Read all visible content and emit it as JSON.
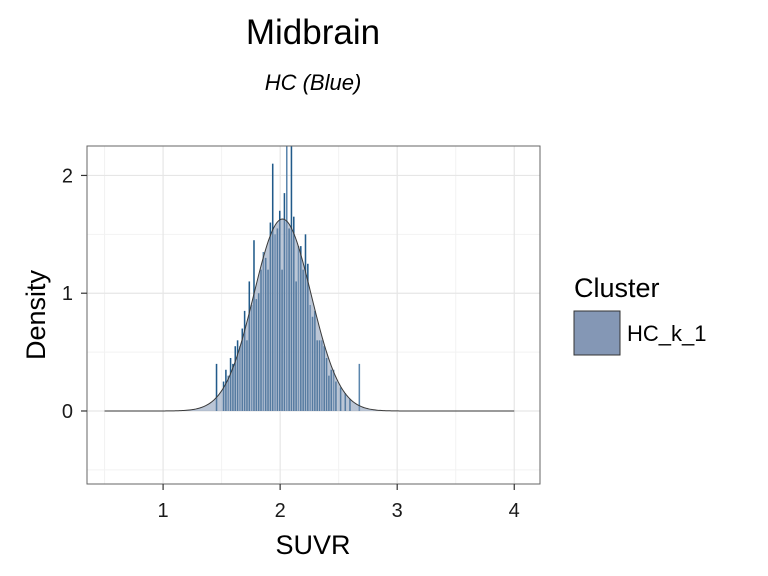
{
  "chart_data": {
    "type": "bar",
    "title": "Midbrain",
    "subtitle": "HC (Blue)",
    "xlabel": "SUVR",
    "ylabel": "Density",
    "xlim": [
      0.35,
      4.22
    ],
    "ylim": [
      -0.62,
      2.25
    ],
    "x_ticks": [
      1,
      2,
      3,
      4
    ],
    "y_ticks": [
      0,
      1,
      2
    ],
    "grid": true,
    "legend": {
      "title": "Cluster",
      "position": "right",
      "items": [
        {
          "name": "HC_k_1",
          "color": "#8497b5"
        }
      ]
    },
    "colors": {
      "histogram": "#215a8a",
      "histogram_light": "#5b86ad",
      "density_fill": "#8497b5",
      "density_line": "#3a3a3a",
      "panel_border": "#666666",
      "grid_major": "#e6e6e6",
      "grid_minor": "#f2f2f2"
    },
    "histogram": {
      "bin_width": 0.02,
      "bins": [
        {
          "x": 1.46,
          "y": 0.4
        },
        {
          "x": 1.52,
          "y": 0.25
        },
        {
          "x": 1.54,
          "y": 0.35
        },
        {
          "x": 1.56,
          "y": 0.3
        },
        {
          "x": 1.58,
          "y": 0.45
        },
        {
          "x": 1.6,
          "y": 0.4
        },
        {
          "x": 1.62,
          "y": 0.55
        },
        {
          "x": 1.64,
          "y": 0.6
        },
        {
          "x": 1.66,
          "y": 0.55
        },
        {
          "x": 1.68,
          "y": 0.7
        },
        {
          "x": 1.7,
          "y": 0.85
        },
        {
          "x": 1.72,
          "y": 0.6
        },
        {
          "x": 1.74,
          "y": 1.1
        },
        {
          "x": 1.76,
          "y": 0.9
        },
        {
          "x": 1.78,
          "y": 1.45
        },
        {
          "x": 1.8,
          "y": 0.95
        },
        {
          "x": 1.82,
          "y": 1.0
        },
        {
          "x": 1.84,
          "y": 1.2
        },
        {
          "x": 1.86,
          "y": 1.35
        },
        {
          "x": 1.88,
          "y": 1.3
        },
        {
          "x": 1.9,
          "y": 1.2
        },
        {
          "x": 1.92,
          "y": 1.6
        },
        {
          "x": 1.94,
          "y": 2.1
        },
        {
          "x": 1.96,
          "y": 1.5
        },
        {
          "x": 1.98,
          "y": 1.55
        },
        {
          "x": 2.0,
          "y": 1.7
        },
        {
          "x": 2.02,
          "y": 1.2
        },
        {
          "x": 2.04,
          "y": 1.85
        },
        {
          "x": 2.06,
          "y": 2.25
        },
        {
          "x": 2.08,
          "y": 1.55
        },
        {
          "x": 2.1,
          "y": 2.25
        },
        {
          "x": 2.12,
          "y": 1.65
        },
        {
          "x": 2.14,
          "y": 1.1
        },
        {
          "x": 2.16,
          "y": 1.4
        },
        {
          "x": 2.18,
          "y": 1.4
        },
        {
          "x": 2.2,
          "y": 1.2
        },
        {
          "x": 2.22,
          "y": 1.5
        },
        {
          "x": 2.24,
          "y": 1.25
        },
        {
          "x": 2.26,
          "y": 0.9
        },
        {
          "x": 2.28,
          "y": 0.8
        },
        {
          "x": 2.3,
          "y": 0.85
        },
        {
          "x": 2.32,
          "y": 0.6
        },
        {
          "x": 2.34,
          "y": 0.6
        },
        {
          "x": 2.36,
          "y": 0.6
        },
        {
          "x": 2.38,
          "y": 0.55
        },
        {
          "x": 2.4,
          "y": 0.45
        },
        {
          "x": 2.42,
          "y": 0.3
        },
        {
          "x": 2.44,
          "y": 0.35
        },
        {
          "x": 2.46,
          "y": 0.35
        },
        {
          "x": 2.48,
          "y": 0.25
        },
        {
          "x": 2.52,
          "y": 0.2
        },
        {
          "x": 2.56,
          "y": 0.15
        },
        {
          "x": 2.6,
          "y": 0.1
        },
        {
          "x": 2.68,
          "y": 0.4
        }
      ]
    },
    "density": {
      "x_range": [
        0.5,
        4.0
      ],
      "mean": 2.02,
      "sd": 0.245,
      "peak": 1.63
    }
  }
}
